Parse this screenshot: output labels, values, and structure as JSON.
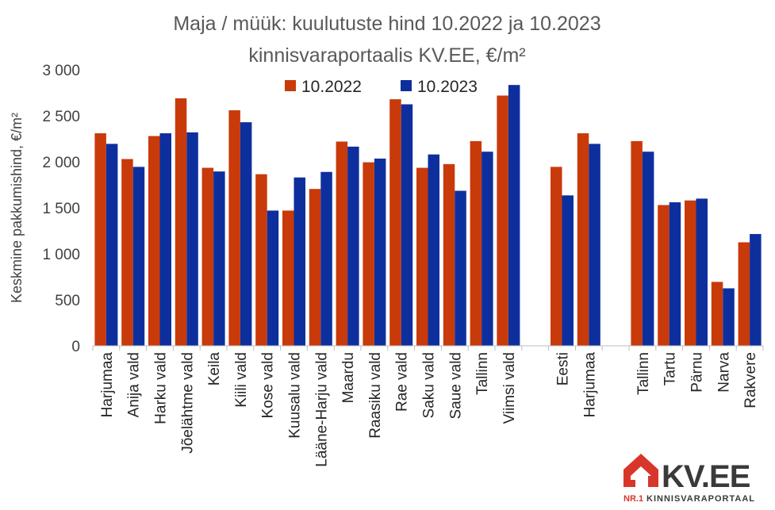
{
  "chart_data": {
    "type": "bar",
    "title": "Maja / müük: kuulutuste hind 10.2022 ja 10.2023",
    "subtitle": "kinnisvaraportaalis KV.EE, €/m²",
    "xlabel": "",
    "ylabel": "Keskmine pakkumishind, €/m²",
    "ylim": [
      0,
      3000
    ],
    "yticks": [
      0,
      500,
      1000,
      1500,
      2000,
      2500,
      3000
    ],
    "ytick_labels": [
      "0",
      "500",
      "1 000",
      "1 500",
      "2 000",
      "2 500",
      "3 000"
    ],
    "grid": false,
    "legend_position": "top-center",
    "categories": [
      "Harjumaa",
      "Anija vald",
      "Harku vald",
      "Jõelähtme vald",
      "Keila",
      "Kiili vald",
      "Kose vald",
      "Kuusalu vald",
      "Lääne-Harju vald",
      "Maardu",
      "Raasiku vald",
      "Rae vald",
      "Saku vald",
      "Saue vald",
      "Tallinn",
      "Viimsi vald",
      "",
      "Eesti",
      "Harjumaa",
      "",
      "Tallinn",
      "Tartu",
      "Pärnu",
      "Narva",
      "Rakvere"
    ],
    "series": [
      {
        "name": "10.2022",
        "color": "#C93A0A",
        "values": [
          2310,
          2030,
          2280,
          2690,
          1935,
          2560,
          1865,
          1470,
          1705,
          2220,
          1995,
          2680,
          1935,
          1975,
          2225,
          2720,
          null,
          1945,
          2310,
          null,
          2225,
          1530,
          1580,
          695,
          1125
        ]
      },
      {
        "name": "10.2023",
        "color": "#0D2F9E",
        "values": [
          2195,
          1945,
          2310,
          2320,
          1895,
          2430,
          1470,
          1830,
          1890,
          2165,
          2035,
          2625,
          2080,
          1685,
          2110,
          2835,
          null,
          1635,
          2195,
          null,
          2110,
          1560,
          1600,
          625,
          1215
        ]
      }
    ]
  },
  "brand": {
    "logo_text": "KV.EE",
    "tagline_prefix": "NR.1",
    "tagline": "KINNISVARAPORTAAL",
    "accent": "#D9362B",
    "dark": "#3A3A3A"
  }
}
